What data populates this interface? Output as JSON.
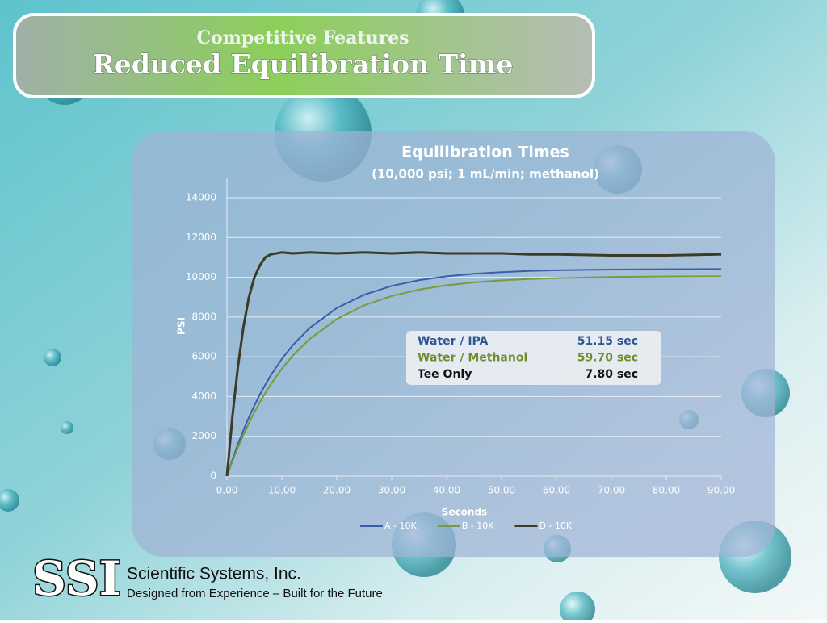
{
  "slide": {
    "kicker": "Competitive Features",
    "title": "Reduced Equilibration Time"
  },
  "chart_data": {
    "type": "line",
    "title": "Equilibration Times",
    "subtitle": "(10,000 psi; 1 mL/min; methanol)",
    "x_label": "Seconds",
    "y_label": "PSI",
    "x": [
      0,
      1,
      2,
      3,
      4,
      5,
      6,
      7,
      8,
      10,
      12,
      15,
      20,
      25,
      30,
      35,
      40,
      45,
      50,
      55,
      60,
      70,
      80,
      90
    ],
    "series": [
      {
        "name": "A - 10K",
        "color": "#3b5ea8",
        "values": [
          0,
          833,
          1600,
          2305,
          2954,
          3551,
          4100,
          4606,
          5073,
          5891,
          6587,
          7435,
          8452,
          9123,
          9565,
          9856,
          10048,
          10175,
          10258,
          10314,
          10350,
          10390,
          10406,
          10414
        ]
      },
      {
        "name": "B - 10K",
        "color": "#7a9a3a",
        "values": [
          0,
          744,
          1435,
          2073,
          2665,
          3212,
          3719,
          4189,
          4624,
          5399,
          6063,
          6883,
          7900,
          8589,
          9059,
          9379,
          9596,
          9744,
          9845,
          9914,
          9960,
          10014,
          10039,
          10050
        ]
      },
      {
        "name": "D - 10K",
        "color": "#3d3a25",
        "values": [
          0,
          3000,
          5500,
          7500,
          9000,
          10000,
          10600,
          11000,
          11150,
          11250,
          11200,
          11250,
          11200,
          11250,
          11200,
          11250,
          11200,
          11200,
          11200,
          11150,
          11150,
          11100,
          11100,
          11150
        ]
      }
    ],
    "xlim": [
      0,
      90
    ],
    "ylim": [
      0,
      14000
    ],
    "xticks": [
      {
        "value": 0,
        "label": "0.00"
      },
      {
        "value": 10,
        "label": "10.00"
      },
      {
        "value": 20,
        "label": "20.00"
      },
      {
        "value": 30,
        "label": "30.00"
      },
      {
        "value": 40,
        "label": "40.00"
      },
      {
        "value": 50,
        "label": "50.00"
      },
      {
        "value": 60,
        "label": "60.00"
      },
      {
        "value": 70,
        "label": "70.00"
      },
      {
        "value": 80,
        "label": "80.00"
      },
      {
        "value": 90,
        "label": "90.00"
      }
    ],
    "yticks": [
      0,
      2000,
      4000,
      6000,
      8000,
      10000,
      12000,
      14000
    ],
    "grid": true,
    "legend": "bottom",
    "annotation_table": [
      {
        "label": "Water / IPA",
        "value": "51.15 sec",
        "color": "#2f5597"
      },
      {
        "label": "Water / Methanol",
        "value": "59.70 sec",
        "color": "#6f8f2f"
      },
      {
        "label": "Tee Only",
        "value": "7.80 sec",
        "color": "#111111"
      }
    ]
  },
  "footer": {
    "logo": "SSI",
    "company": "Scientific Systems, Inc.",
    "tagline": "Designed from Experience – Built for the Future"
  }
}
